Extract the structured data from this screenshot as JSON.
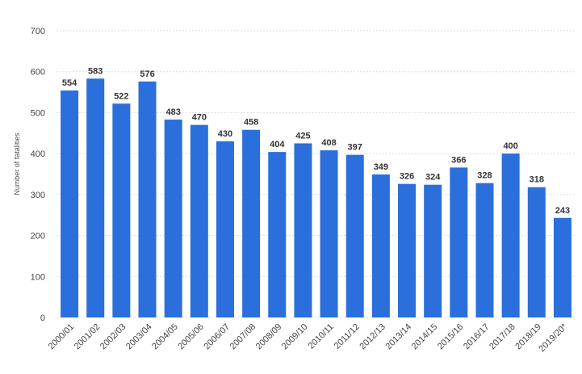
{
  "chart_data": {
    "type": "bar",
    "ylabel": "Number of fatalities",
    "ylim": [
      0,
      700
    ],
    "yticks": [
      0,
      100,
      200,
      300,
      400,
      500,
      600,
      700
    ],
    "grid": true,
    "bar_color": "#2a6fdb",
    "grid_color": "#dddddd",
    "categories": [
      "2000/01",
      "2001/02",
      "2002/03",
      "2003/04",
      "2004/05",
      "2005/06",
      "2006/07",
      "2007/08",
      "2008/09",
      "2009/10",
      "2010/11",
      "2011/12",
      "2012/13",
      "2013/14",
      "2014/15",
      "2015/16",
      "2016/17",
      "2017/18",
      "2018/19",
      "2019/20*"
    ],
    "values": [
      554,
      583,
      522,
      576,
      483,
      470,
      430,
      458,
      404,
      425,
      408,
      397,
      349,
      326,
      324,
      366,
      328,
      400,
      318,
      243
    ]
  }
}
